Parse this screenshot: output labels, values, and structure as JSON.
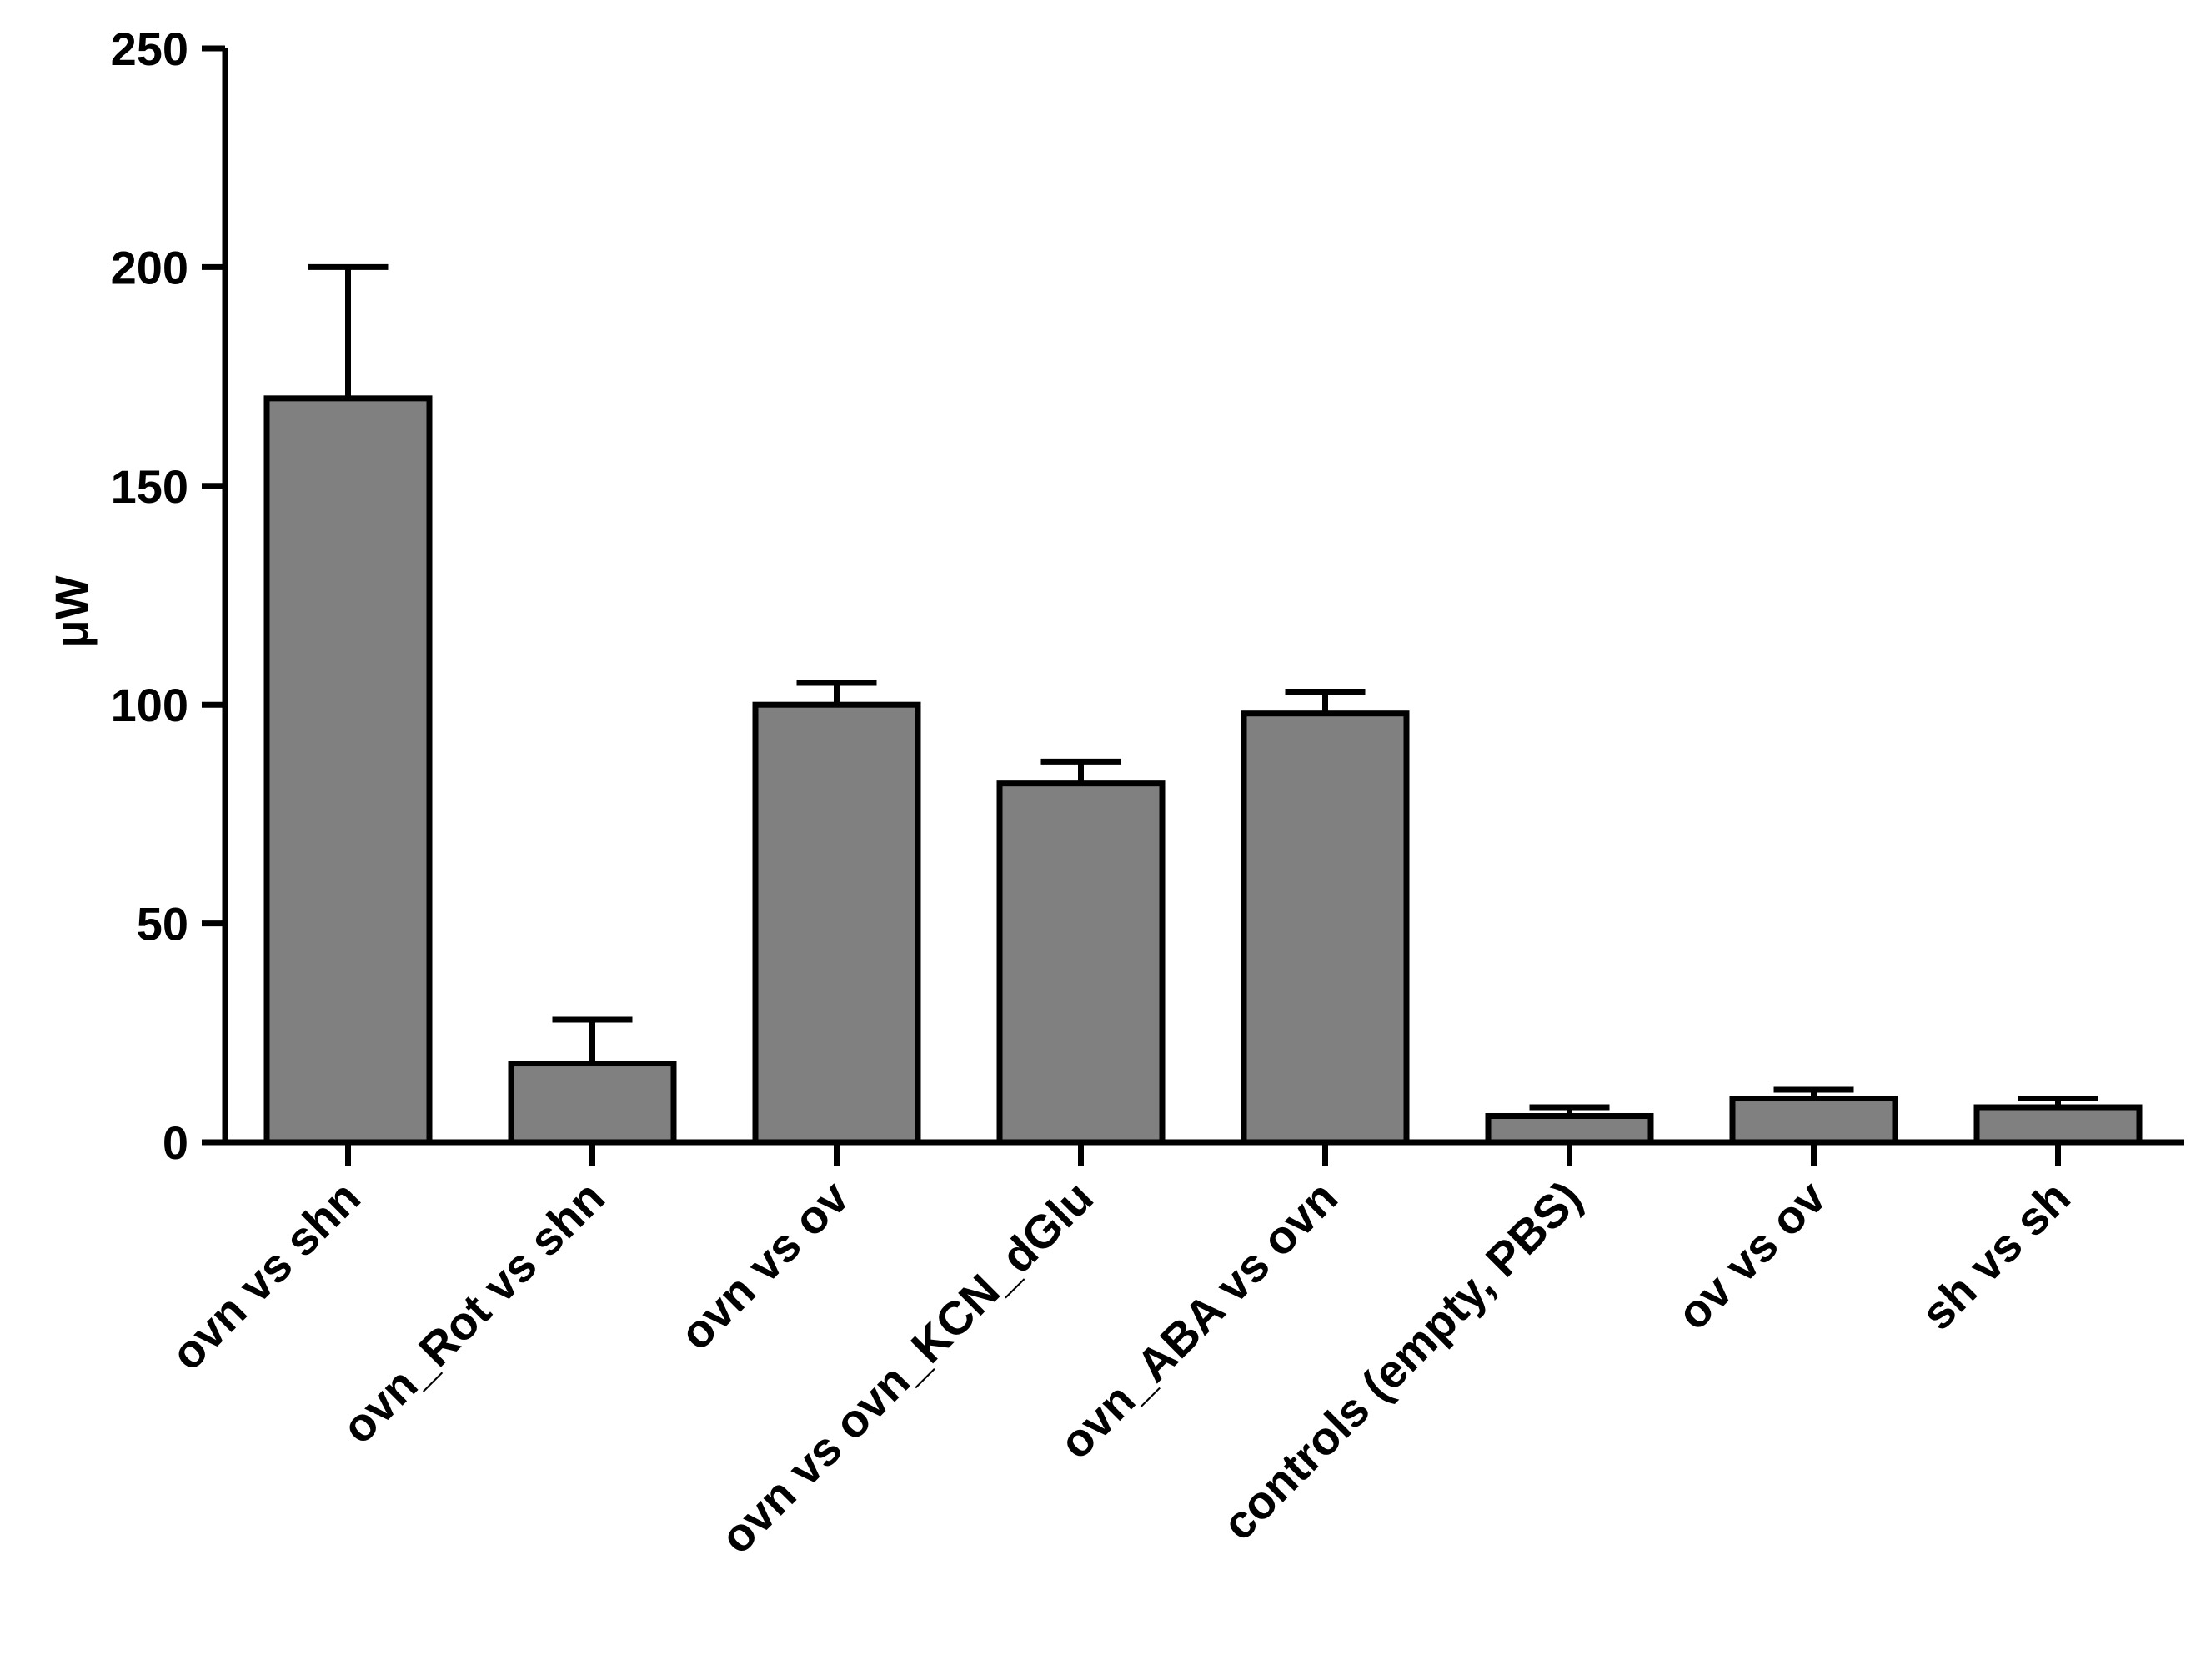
{
  "chart_data": {
    "type": "bar",
    "title": "",
    "xlabel": "",
    "ylabel": "μW",
    "ylim": [
      0,
      250
    ],
    "yticks": [
      0,
      50,
      100,
      150,
      200,
      250
    ],
    "grid": false,
    "legend": "none",
    "bar_color": "#808080",
    "categories": [
      "ovn vs shn",
      "ovn_Rot vs shn",
      "ovn vs ov",
      "ovn vs ovn_KCN_dGlu",
      "ovn_ABA vs ovn",
      "controls (empty, PBS)",
      "ov vs ov",
      "sh vs sh"
    ],
    "values": [
      170,
      18,
      100,
      82,
      98,
      6,
      10,
      8
    ],
    "errors": [
      30,
      10,
      5,
      5,
      5,
      2,
      2,
      2
    ]
  }
}
